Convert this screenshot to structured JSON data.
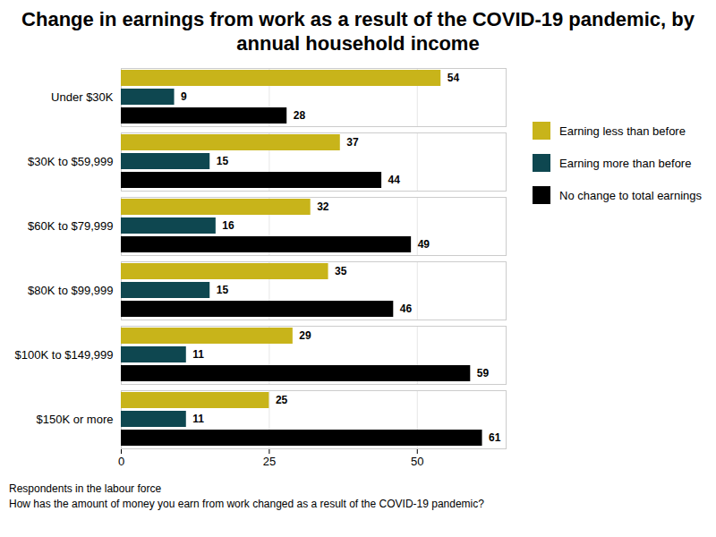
{
  "chart_data": {
    "type": "bar",
    "orientation": "horizontal",
    "title": "Change in earnings from work as a result of the COVID-19 pandemic, by annual household income",
    "categories": [
      "Under $30K",
      "$30K to $59,999",
      "$60K to $79,999",
      "$80K to $99,999",
      "$100K to $149,999",
      "$150K or more"
    ],
    "series": [
      {
        "name": "Earning less than before",
        "color": "#c8b41a",
        "values": [
          54,
          37,
          32,
          35,
          29,
          25
        ]
      },
      {
        "name": "Earning more than before",
        "color": "#0e4750",
        "values": [
          9,
          15,
          16,
          15,
          11,
          11
        ]
      },
      {
        "name": "No change to total earnings",
        "color": "#000000",
        "values": [
          28,
          44,
          49,
          46,
          59,
          61
        ]
      }
    ],
    "xlim": [
      0,
      65
    ],
    "xticks": [
      0,
      25,
      50
    ],
    "grid": true,
    "legend": "right",
    "data_labels": true,
    "notes": [
      "Respondents in the labour force",
      "How has the amount of money you earn from work changed as a result of the COVID-19 pandemic?"
    ]
  }
}
